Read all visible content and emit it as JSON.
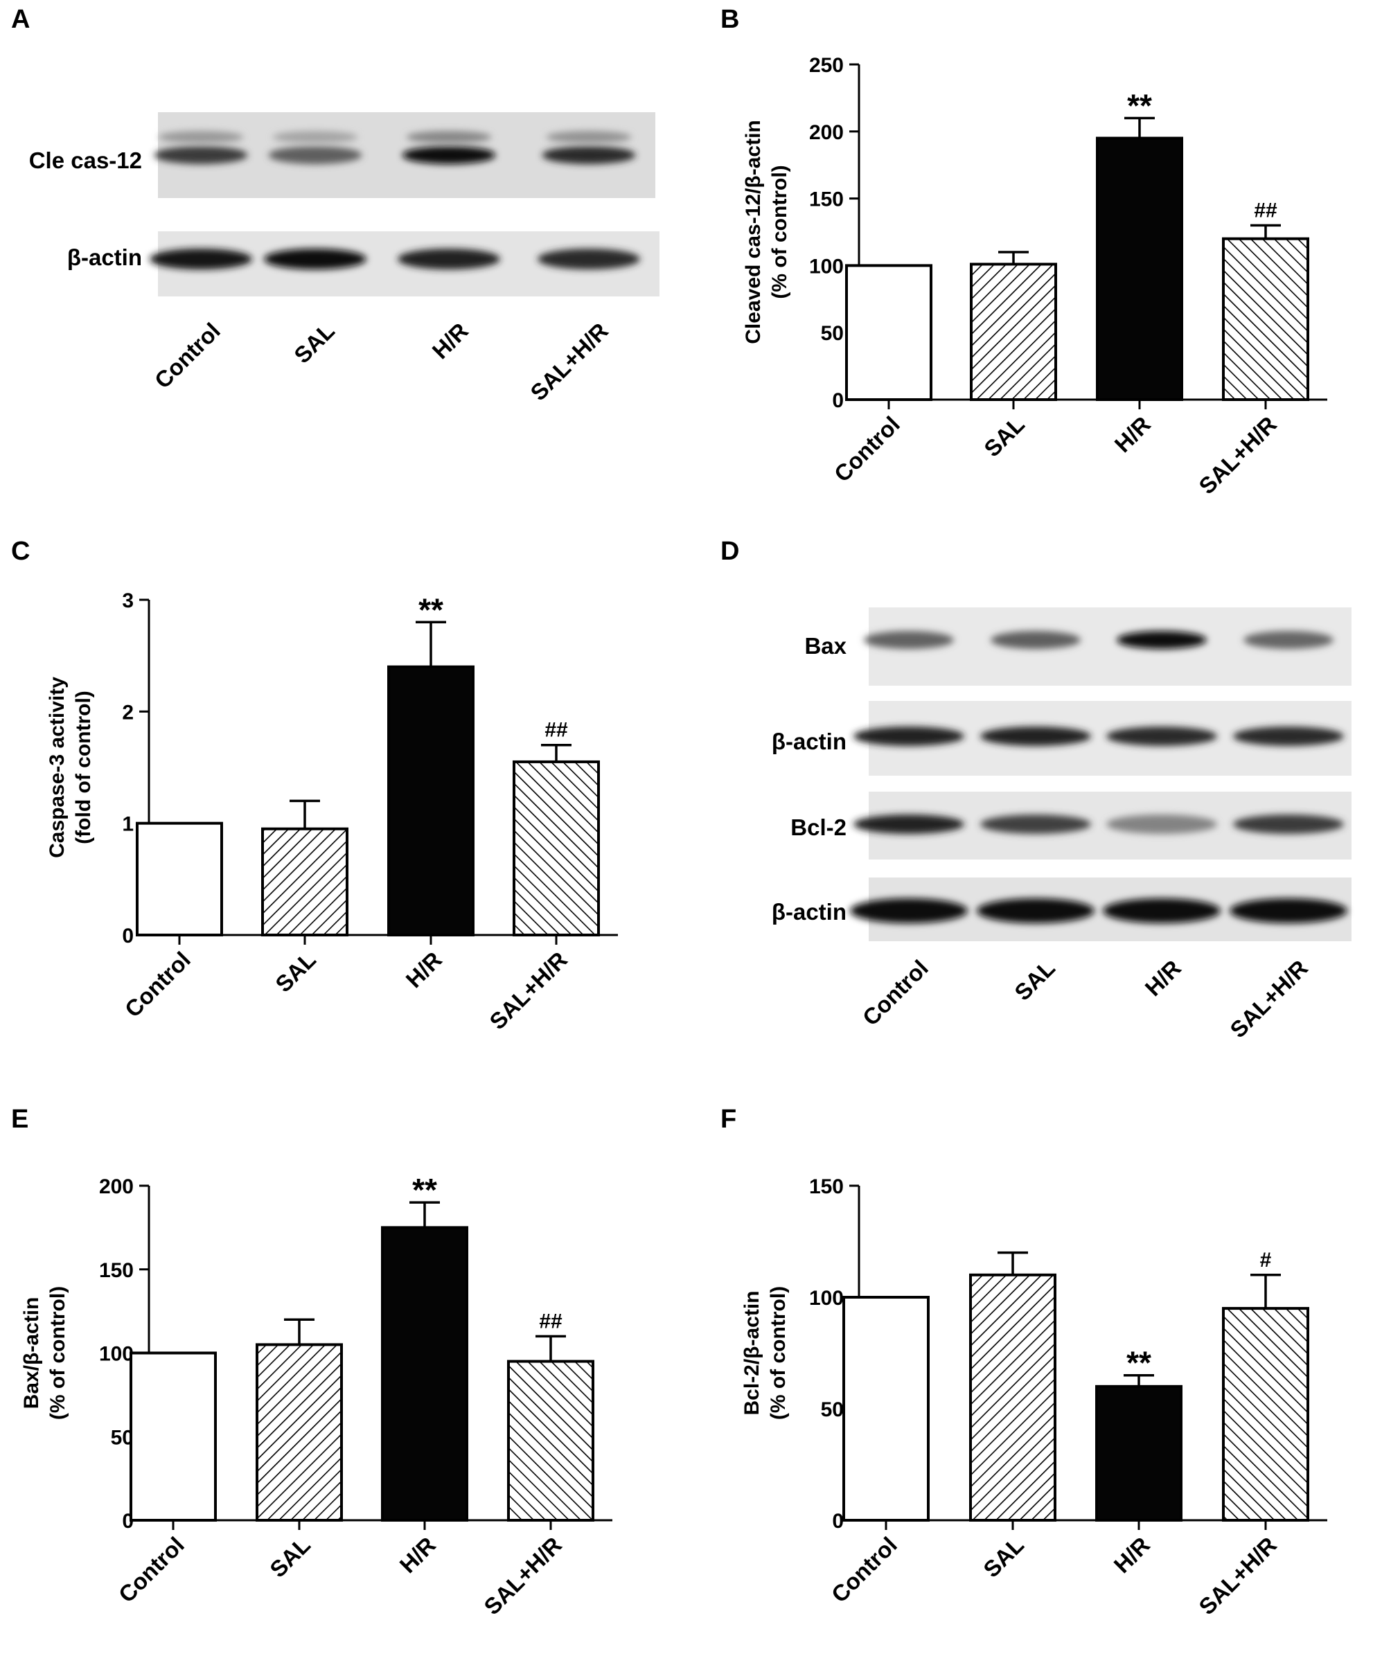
{
  "panels": {
    "A": {
      "letter": "A"
    },
    "B": {
      "letter": "B"
    },
    "C": {
      "letter": "C"
    },
    "D": {
      "letter": "D"
    },
    "E": {
      "letter": "E"
    },
    "F": {
      "letter": "F"
    }
  },
  "blots": {
    "A": {
      "categories": [
        "Control",
        "SAL",
        "H/R",
        "SAL+H/R"
      ],
      "rows": [
        {
          "label": "Cle cas-12",
          "intensity": [
            0.78,
            0.62,
            1.0,
            0.85
          ]
        },
        {
          "label": "β-actin",
          "intensity": [
            0.95,
            0.98,
            0.88,
            0.86
          ]
        }
      ]
    },
    "D": {
      "categories": [
        "Control",
        "SAL",
        "H/R",
        "SAL+H/R"
      ],
      "rows": [
        {
          "label": "Bax",
          "intensity": [
            0.6,
            0.62,
            1.0,
            0.58
          ]
        },
        {
          "label": "β-actin",
          "intensity": [
            0.88,
            0.88,
            0.86,
            0.86
          ]
        },
        {
          "label": "Bcl-2",
          "intensity": [
            0.9,
            0.75,
            0.45,
            0.78
          ]
        },
        {
          "label": "β-actin",
          "intensity": [
            1.0,
            1.0,
            1.0,
            1.0
          ]
        }
      ]
    }
  },
  "chart_data": [
    {
      "panel": "B",
      "type": "bar",
      "categories": [
        "Control",
        "SAL",
        "H/R",
        "SAL+H/R"
      ],
      "values": [
        100,
        101,
        195,
        120
      ],
      "errors": [
        0,
        9,
        15,
        10
      ],
      "significance": [
        "",
        "",
        "**",
        "##"
      ],
      "fills": [
        "white",
        "hatch-left",
        "black",
        "hatch-right"
      ],
      "ylabel_line1": "Cleaved cas-12/β-actin",
      "ylabel_line2": "(% of control)",
      "ylim": [
        0,
        250
      ],
      "yticks": [
        0,
        50,
        100,
        150,
        200,
        250
      ]
    },
    {
      "panel": "C",
      "type": "bar",
      "categories": [
        "Control",
        "SAL",
        "H/R",
        "SAL+H/R"
      ],
      "values": [
        1.0,
        0.95,
        2.4,
        1.55
      ],
      "errors": [
        0,
        0.25,
        0.4,
        0.15
      ],
      "significance": [
        "",
        "",
        "**",
        "##"
      ],
      "fills": [
        "white",
        "hatch-left",
        "black",
        "hatch-right"
      ],
      "ylabel_line1": "Caspase-3 activity",
      "ylabel_line2": "(fold of control)",
      "ylim": [
        0,
        3
      ],
      "yticks": [
        0,
        1,
        2,
        3
      ]
    },
    {
      "panel": "E",
      "type": "bar",
      "categories": [
        "Control",
        "SAL",
        "H/R",
        "SAL+H/R"
      ],
      "values": [
        100,
        105,
        175,
        95
      ],
      "errors": [
        0,
        15,
        15,
        15
      ],
      "significance": [
        "",
        "",
        "**",
        "##"
      ],
      "fills": [
        "white",
        "hatch-left",
        "black",
        "hatch-right"
      ],
      "ylabel_line1": "Bax/β-actin",
      "ylabel_line2": "(% of control)",
      "ylim": [
        0,
        200
      ],
      "yticks": [
        0,
        50,
        100,
        150,
        200
      ]
    },
    {
      "panel": "F",
      "type": "bar",
      "categories": [
        "Control",
        "SAL",
        "H/R",
        "SAL+H/R"
      ],
      "values": [
        100,
        110,
        60,
        95
      ],
      "errors": [
        0,
        10,
        5,
        15
      ],
      "significance": [
        "",
        "",
        "**",
        "#"
      ],
      "fills": [
        "white",
        "hatch-left",
        "black",
        "hatch-right"
      ],
      "ylabel_line1": "Bcl-2/β-actin",
      "ylabel_line2": "(% of control)",
      "ylim": [
        0,
        150
      ],
      "yticks": [
        0,
        50,
        100,
        150
      ]
    }
  ]
}
